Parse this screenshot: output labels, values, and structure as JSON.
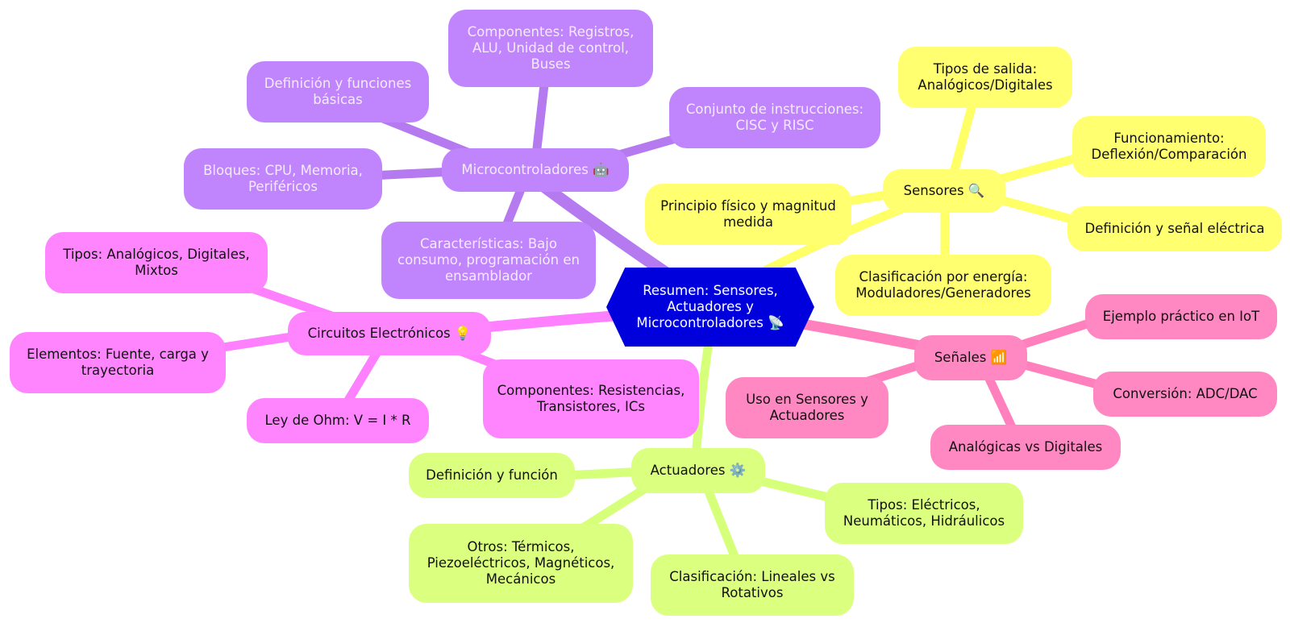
{
  "colors": {
    "root": "#0000dd",
    "purple": "#c084fc",
    "purple_edge": "#b579f0",
    "yellow": "#ffff70",
    "yellow_edge": "#ffff66",
    "pink": "#ff85ff",
    "pink_edge": "#ff80ff",
    "rose": "#ff88c2",
    "rose_edge": "#ff80bd",
    "green": "#dbff7f",
    "green_edge": "#d6ff7a"
  },
  "root": {
    "label": "Resumen: Sensores, Actuadores y Microcontroladores 📡"
  },
  "branches": {
    "micro": {
      "label": "Microcontroladores 🤖",
      "children": [
        "Componentes: Registros, ALU, Unidad de control, Buses",
        "Definición y funciones básicas",
        "Conjunto de instrucciones: CISC y RISC",
        "Bloques: CPU, Memoria, Periféricos",
        "Características: Bajo consumo, programación en ensamblador"
      ]
    },
    "sensores": {
      "label": "Sensores 🔍",
      "children": [
        "Tipos de salida: Analógicos/Digitales",
        "Funcionamiento: Deflexión/Comparación",
        "Principio físico y magnitud medida",
        "Definición y señal eléctrica",
        "Clasificación por energía: Moduladores/Generadores"
      ]
    },
    "circuitos": {
      "label": "Circuitos Electrónicos 💡",
      "children": [
        "Tipos: Analógicos, Digitales, Mixtos",
        "Elementos: Fuente, carga y trayectoria",
        "Ley de Ohm: V = I * R",
        "Componentes: Resistencias, Transistores, ICs"
      ]
    },
    "senales": {
      "label": "Señales 📶",
      "children": [
        "Ejemplo práctico en IoT",
        "Conversión: ADC/DAC",
        "Uso en Sensores y Actuadores",
        "Analógicas vs Digitales"
      ]
    },
    "actuadores": {
      "label": "Actuadores ⚙️",
      "children": [
        "Definición y función",
        "Tipos: Eléctricos, Neumáticos, Hidráulicos",
        "Otros: Térmicos, Piezoeléctricos, Magnéticos, Mecánicos",
        "Clasificación: Lineales vs Rotativos"
      ]
    }
  }
}
